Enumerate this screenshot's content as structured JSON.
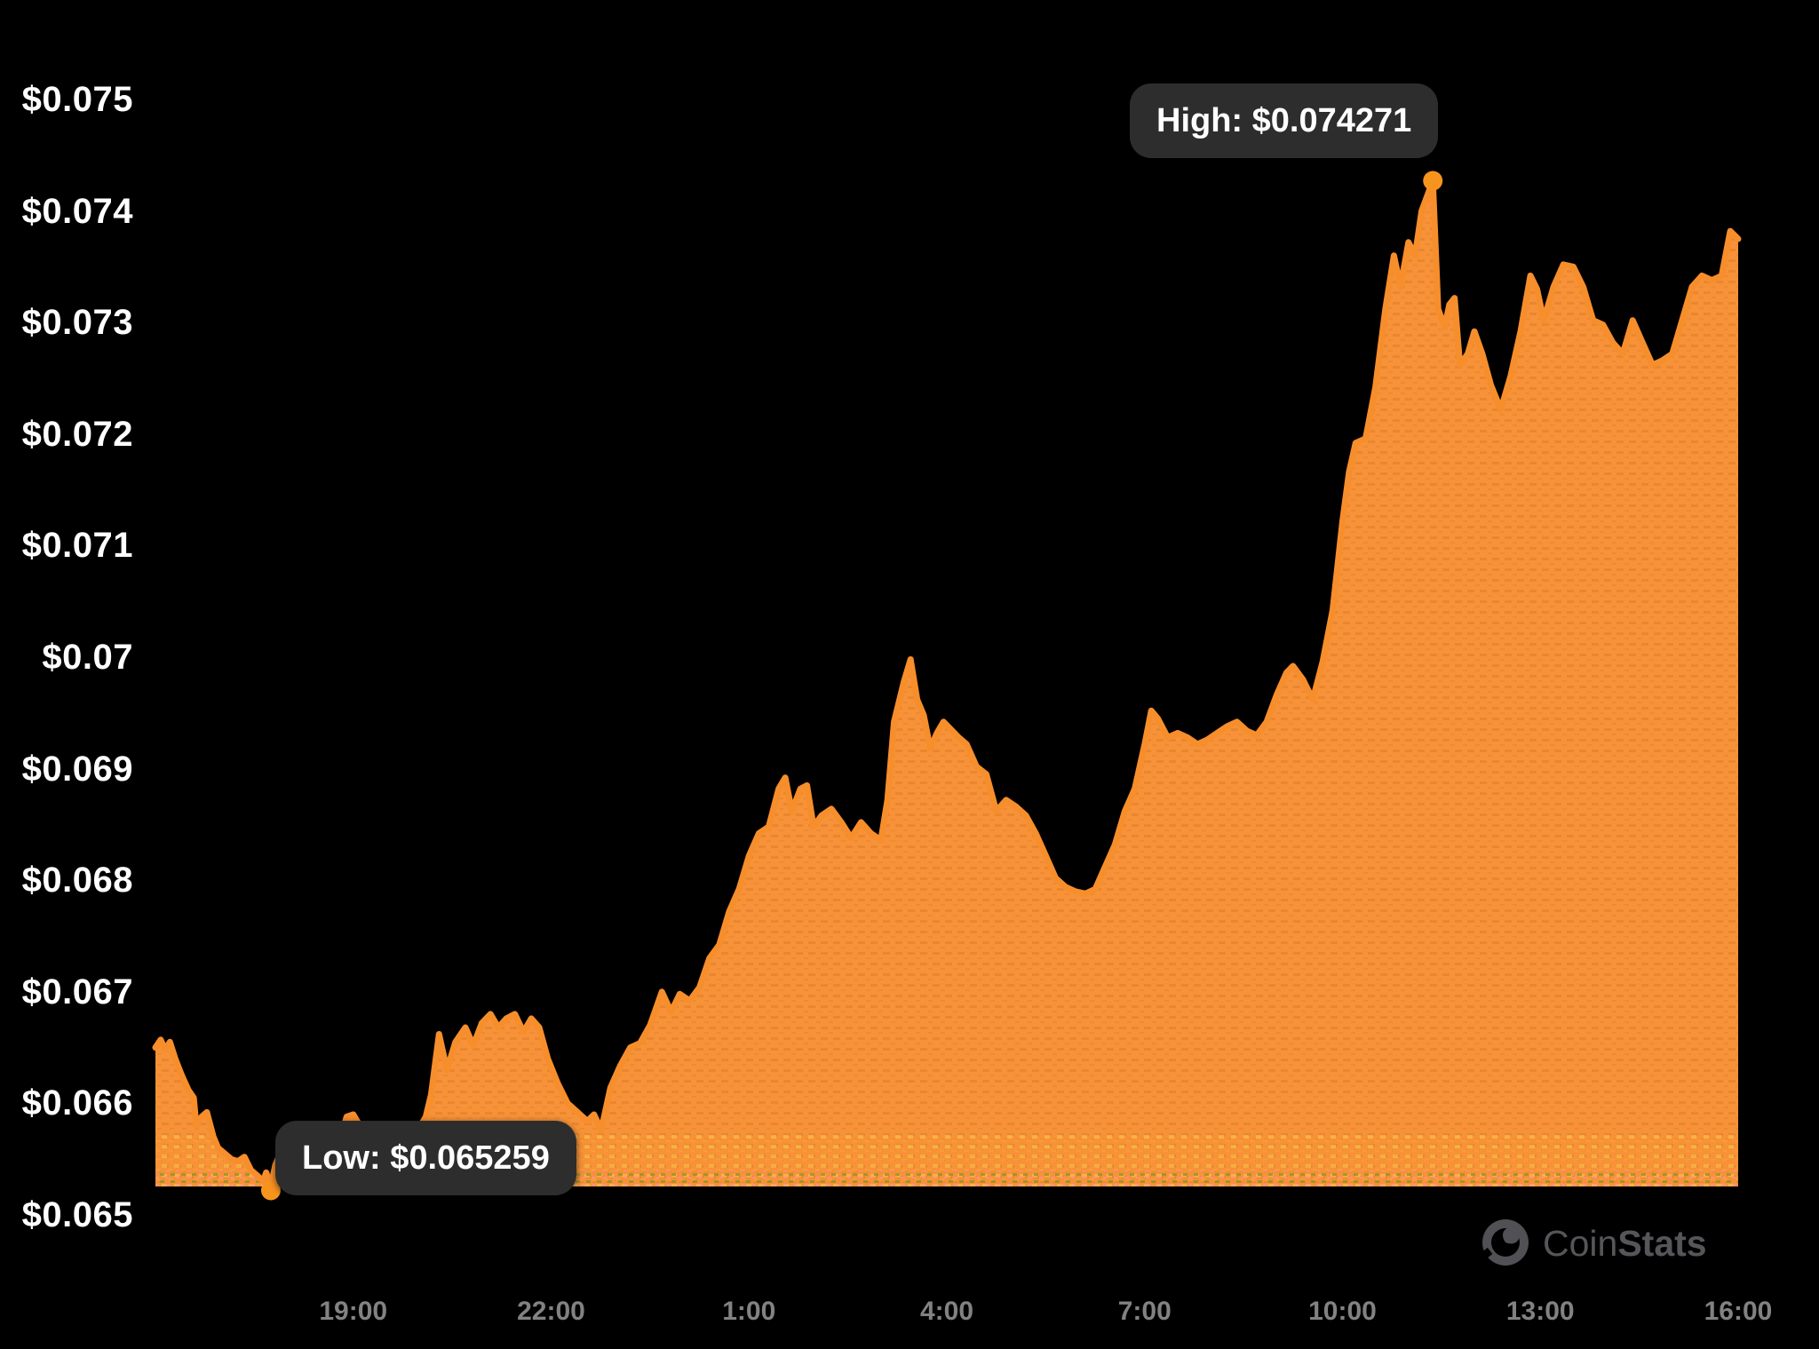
{
  "style": {
    "background": "#000000",
    "area_fill": "#F79238",
    "line_stroke": "#F78E2C",
    "marker_fill": "#F7941E",
    "tooltip_bg": "#2D2D2D",
    "tooltip_text": "#FFFFFF",
    "y_label_color": "#FFFFFF",
    "x_label_color": "#828282",
    "watermark_color": "#56565A",
    "texture_dark_dash": "#B85E14",
    "texture_yellow_dash": "#FFD84A",
    "texture_olive_dot": "#8F932B",
    "texture_pink_dot": "#FF8FAE"
  },
  "annotations": {
    "high": {
      "label": "High: $0.074271",
      "price": 0.074271,
      "t": 19.37
    },
    "low": {
      "label": "Low: $0.065259",
      "price": 0.065259,
      "t": 1.75
    }
  },
  "watermark": {
    "regular": "Coin",
    "bold": "Stats",
    "icon": "coinstats-clock-icon"
  },
  "y_axis": {
    "ticks": [
      {
        "label": "$0.075",
        "value": 0.075
      },
      {
        "label": "$0.074",
        "value": 0.074
      },
      {
        "label": "$0.073",
        "value": 0.073
      },
      {
        "label": "$0.072",
        "value": 0.072
      },
      {
        "label": "$0.071",
        "value": 0.071
      },
      {
        "label": "$0.07",
        "value": 0.07
      },
      {
        "label": "$0.069",
        "value": 0.069
      },
      {
        "label": "$0.068",
        "value": 0.068
      },
      {
        "label": "$0.067",
        "value": 0.067
      },
      {
        "label": "$0.066",
        "value": 0.066
      },
      {
        "label": "$0.065",
        "value": 0.065
      }
    ]
  },
  "x_axis": {
    "ticks": [
      {
        "label": "19:00",
        "hour": 3
      },
      {
        "label": "22:00",
        "hour": 6
      },
      {
        "label": "1:00",
        "hour": 9
      },
      {
        "label": "4:00",
        "hour": 12
      },
      {
        "label": "7:00",
        "hour": 15
      },
      {
        "label": "10:00",
        "hour": 18
      },
      {
        "label": "13:00",
        "hour": 21
      },
      {
        "label": "16:00",
        "hour": 24
      }
    ]
  },
  "chart_data": {
    "type": "area",
    "title": "",
    "xlabel": "",
    "ylabel": "",
    "x_unit": "hours since series start (24h window)",
    "y_range_labeled": [
      0.065,
      0.075
    ],
    "grid": false,
    "legend": false,
    "high": 0.074271,
    "low": 0.065259,
    "series": [
      {
        "name": "price",
        "points": [
          [
            0,
            0.0665
          ],
          [
            0.08,
            0.06657
          ],
          [
            0.15,
            0.06648
          ],
          [
            0.22,
            0.06655
          ],
          [
            0.3,
            0.0664
          ],
          [
            0.4,
            0.06625
          ],
          [
            0.5,
            0.06612
          ],
          [
            0.58,
            0.06605
          ],
          [
            0.62,
            0.0658
          ],
          [
            0.7,
            0.06588
          ],
          [
            0.78,
            0.06592
          ],
          [
            0.88,
            0.0657
          ],
          [
            0.95,
            0.0656
          ],
          [
            1.05,
            0.06555
          ],
          [
            1.15,
            0.0655
          ],
          [
            1.25,
            0.06548
          ],
          [
            1.35,
            0.06552
          ],
          [
            1.45,
            0.0654
          ],
          [
            1.55,
            0.06535
          ],
          [
            1.63,
            0.0653
          ],
          [
            1.68,
            0.06538
          ],
          [
            1.75,
            0.065259
          ],
          [
            1.82,
            0.06545
          ],
          [
            1.9,
            0.06556
          ],
          [
            2,
            0.0656
          ],
          [
            2.1,
            0.06552
          ],
          [
            2.2,
            0.06558
          ],
          [
            2.35,
            0.06545
          ],
          [
            2.5,
            0.06536
          ],
          [
            2.62,
            0.06545
          ],
          [
            2.75,
            0.06558
          ],
          [
            2.9,
            0.06588
          ],
          [
            3,
            0.0659
          ],
          [
            3.1,
            0.0658
          ],
          [
            3.25,
            0.06572
          ],
          [
            3.4,
            0.0656
          ],
          [
            3.55,
            0.06552
          ],
          [
            3.7,
            0.06558
          ],
          [
            3.85,
            0.06562
          ],
          [
            4,
            0.06578
          ],
          [
            4.1,
            0.06588
          ],
          [
            4.18,
            0.06608
          ],
          [
            4.3,
            0.06662
          ],
          [
            4.42,
            0.0663
          ],
          [
            4.55,
            0.06655
          ],
          [
            4.7,
            0.06668
          ],
          [
            4.82,
            0.06652
          ],
          [
            4.95,
            0.06672
          ],
          [
            5.08,
            0.0668
          ],
          [
            5.2,
            0.06668
          ],
          [
            5.32,
            0.06676
          ],
          [
            5.45,
            0.0668
          ],
          [
            5.58,
            0.06664
          ],
          [
            5.7,
            0.06676
          ],
          [
            5.82,
            0.06668
          ],
          [
            5.95,
            0.0664
          ],
          [
            6.1,
            0.06618
          ],
          [
            6.25,
            0.066
          ],
          [
            6.4,
            0.06592
          ],
          [
            6.55,
            0.06584
          ],
          [
            6.65,
            0.0659
          ],
          [
            6.76,
            0.06576
          ],
          [
            6.9,
            0.06614
          ],
          [
            7.05,
            0.06634
          ],
          [
            7.2,
            0.0665
          ],
          [
            7.35,
            0.06654
          ],
          [
            7.5,
            0.0667
          ],
          [
            7.68,
            0.067
          ],
          [
            7.82,
            0.06682
          ],
          [
            7.95,
            0.06698
          ],
          [
            8.1,
            0.06692
          ],
          [
            8.25,
            0.06704
          ],
          [
            8.4,
            0.0673
          ],
          [
            8.55,
            0.06742
          ],
          [
            8.7,
            0.06772
          ],
          [
            8.85,
            0.06792
          ],
          [
            9,
            0.06822
          ],
          [
            9.15,
            0.06842
          ],
          [
            9.3,
            0.06848
          ],
          [
            9.45,
            0.06882
          ],
          [
            9.55,
            0.06892
          ],
          [
            9.65,
            0.06862
          ],
          [
            9.78,
            0.06882
          ],
          [
            9.88,
            0.06885
          ],
          [
            9.98,
            0.06848
          ],
          [
            10.1,
            0.06858
          ],
          [
            10.25,
            0.06864
          ],
          [
            10.4,
            0.06852
          ],
          [
            10.55,
            0.06838
          ],
          [
            10.7,
            0.06852
          ],
          [
            10.85,
            0.06842
          ],
          [
            11,
            0.06836
          ],
          [
            11.1,
            0.06872
          ],
          [
            11.2,
            0.06942
          ],
          [
            11.35,
            0.06978
          ],
          [
            11.45,
            0.06998
          ],
          [
            11.55,
            0.06962
          ],
          [
            11.65,
            0.06948
          ],
          [
            11.75,
            0.06918
          ],
          [
            11.85,
            0.06932
          ],
          [
            11.95,
            0.06942
          ],
          [
            12.05,
            0.06936
          ],
          [
            12.18,
            0.06928
          ],
          [
            12.3,
            0.06922
          ],
          [
            12.45,
            0.06902
          ],
          [
            12.6,
            0.06895
          ],
          [
            12.75,
            0.06862
          ],
          [
            12.9,
            0.06872
          ],
          [
            13.05,
            0.06866
          ],
          [
            13.2,
            0.06858
          ],
          [
            13.35,
            0.06842
          ],
          [
            13.5,
            0.06822
          ],
          [
            13.65,
            0.06802
          ],
          [
            13.8,
            0.06794
          ],
          [
            13.95,
            0.0679
          ],
          [
            14.1,
            0.06788
          ],
          [
            14.25,
            0.06792
          ],
          [
            14.4,
            0.06812
          ],
          [
            14.55,
            0.06832
          ],
          [
            14.7,
            0.06862
          ],
          [
            14.85,
            0.06882
          ],
          [
            15,
            0.06922
          ],
          [
            15.1,
            0.06952
          ],
          [
            15.2,
            0.06945
          ],
          [
            15.35,
            0.06928
          ],
          [
            15.5,
            0.06932
          ],
          [
            15.65,
            0.06928
          ],
          [
            15.8,
            0.06922
          ],
          [
            15.95,
            0.06926
          ],
          [
            16.1,
            0.06932
          ],
          [
            16.25,
            0.06938
          ],
          [
            16.4,
            0.06942
          ],
          [
            16.55,
            0.06934
          ],
          [
            16.7,
            0.0693
          ],
          [
            16.85,
            0.06942
          ],
          [
            17,
            0.06966
          ],
          [
            17.15,
            0.06986
          ],
          [
            17.25,
            0.06992
          ],
          [
            17.4,
            0.0698
          ],
          [
            17.55,
            0.06962
          ],
          [
            17.7,
            0.06996
          ],
          [
            17.85,
            0.07042
          ],
          [
            18,
            0.07122
          ],
          [
            18.1,
            0.07166
          ],
          [
            18.2,
            0.07192
          ],
          [
            18.35,
            0.07196
          ],
          [
            18.5,
            0.07242
          ],
          [
            18.65,
            0.07312
          ],
          [
            18.78,
            0.0736
          ],
          [
            18.88,
            0.07332
          ],
          [
            19,
            0.07372
          ],
          [
            19.1,
            0.0736
          ],
          [
            19.2,
            0.074
          ],
          [
            19.37,
            0.074271
          ],
          [
            19.45,
            0.07312
          ],
          [
            19.55,
            0.07296
          ],
          [
            19.62,
            0.07316
          ],
          [
            19.7,
            0.07322
          ],
          [
            19.78,
            0.07262
          ],
          [
            19.9,
            0.07272
          ],
          [
            20,
            0.07292
          ],
          [
            20.12,
            0.07272
          ],
          [
            20.25,
            0.07244
          ],
          [
            20.4,
            0.07222
          ],
          [
            20.55,
            0.07252
          ],
          [
            20.7,
            0.07292
          ],
          [
            20.85,
            0.07342
          ],
          [
            20.95,
            0.0733
          ],
          [
            21.05,
            0.07302
          ],
          [
            21.2,
            0.07332
          ],
          [
            21.35,
            0.07352
          ],
          [
            21.5,
            0.0735
          ],
          [
            21.65,
            0.07332
          ],
          [
            21.8,
            0.07302
          ],
          [
            21.95,
            0.07298
          ],
          [
            22.1,
            0.07282
          ],
          [
            22.25,
            0.07272
          ],
          [
            22.4,
            0.07302
          ],
          [
            22.55,
            0.07282
          ],
          [
            22.7,
            0.07262
          ],
          [
            22.85,
            0.07266
          ],
          [
            23,
            0.07272
          ],
          [
            23.15,
            0.07302
          ],
          [
            23.3,
            0.07332
          ],
          [
            23.45,
            0.07342
          ],
          [
            23.6,
            0.07338
          ],
          [
            23.75,
            0.07342
          ],
          [
            23.88,
            0.07382
          ],
          [
            24,
            0.07375
          ]
        ]
      }
    ]
  }
}
